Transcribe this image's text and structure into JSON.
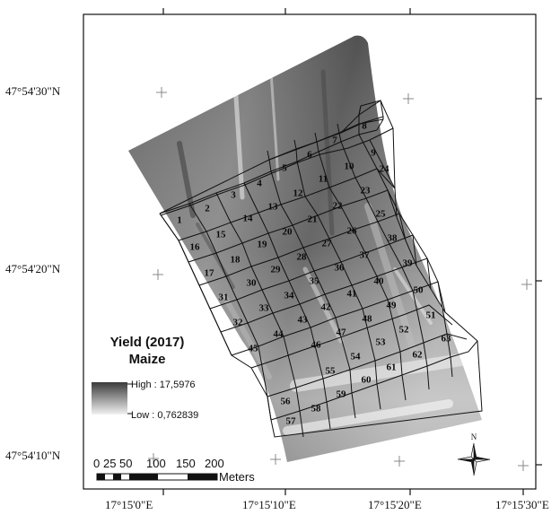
{
  "coordinates": {
    "top_labels": [
      "17°15'0\"E",
      "17°15'10\"E",
      "17°15'20\"E",
      "17°15'30\"E"
    ],
    "bottom_labels": [
      "17°15'0\"E",
      "17°15'10\"E",
      "17°15'20\"E",
      "17°15'30\"E"
    ],
    "left_labels": [
      "47°54'30\"N",
      "47°54'20\"N",
      "47°54'10\"N"
    ]
  },
  "plots": [
    "1",
    "2",
    "3",
    "4",
    "5",
    "6",
    "7",
    "8",
    "9",
    "10",
    "11",
    "12",
    "13",
    "14",
    "15",
    "16",
    "17",
    "18",
    "19",
    "20",
    "21",
    "22",
    "23",
    "24",
    "25",
    "26",
    "27",
    "28",
    "29",
    "30",
    "31",
    "32",
    "33",
    "34",
    "35",
    "36",
    "37",
    "38",
    "39",
    "40",
    "41",
    "42",
    "43",
    "44",
    "45",
    "46",
    "47",
    "48",
    "49",
    "50",
    "51",
    "52",
    "53",
    "54",
    "55",
    "56",
    "57",
    "58",
    "59",
    "60",
    "61",
    "62",
    "63"
  ],
  "legend": {
    "title_line1": "Yield (2017)",
    "title_line2": "Maize",
    "high_label": "High : 17,5976",
    "low_label": "Low : 0,762839",
    "colors": {
      "high": "#3a3a3a",
      "low": "#f2f2f2"
    }
  },
  "scale_bar": {
    "ticks": [
      "0",
      "25",
      "50",
      "100",
      "150",
      "200"
    ],
    "unit": "Meters"
  },
  "north_arrow": {
    "label": "N"
  }
}
